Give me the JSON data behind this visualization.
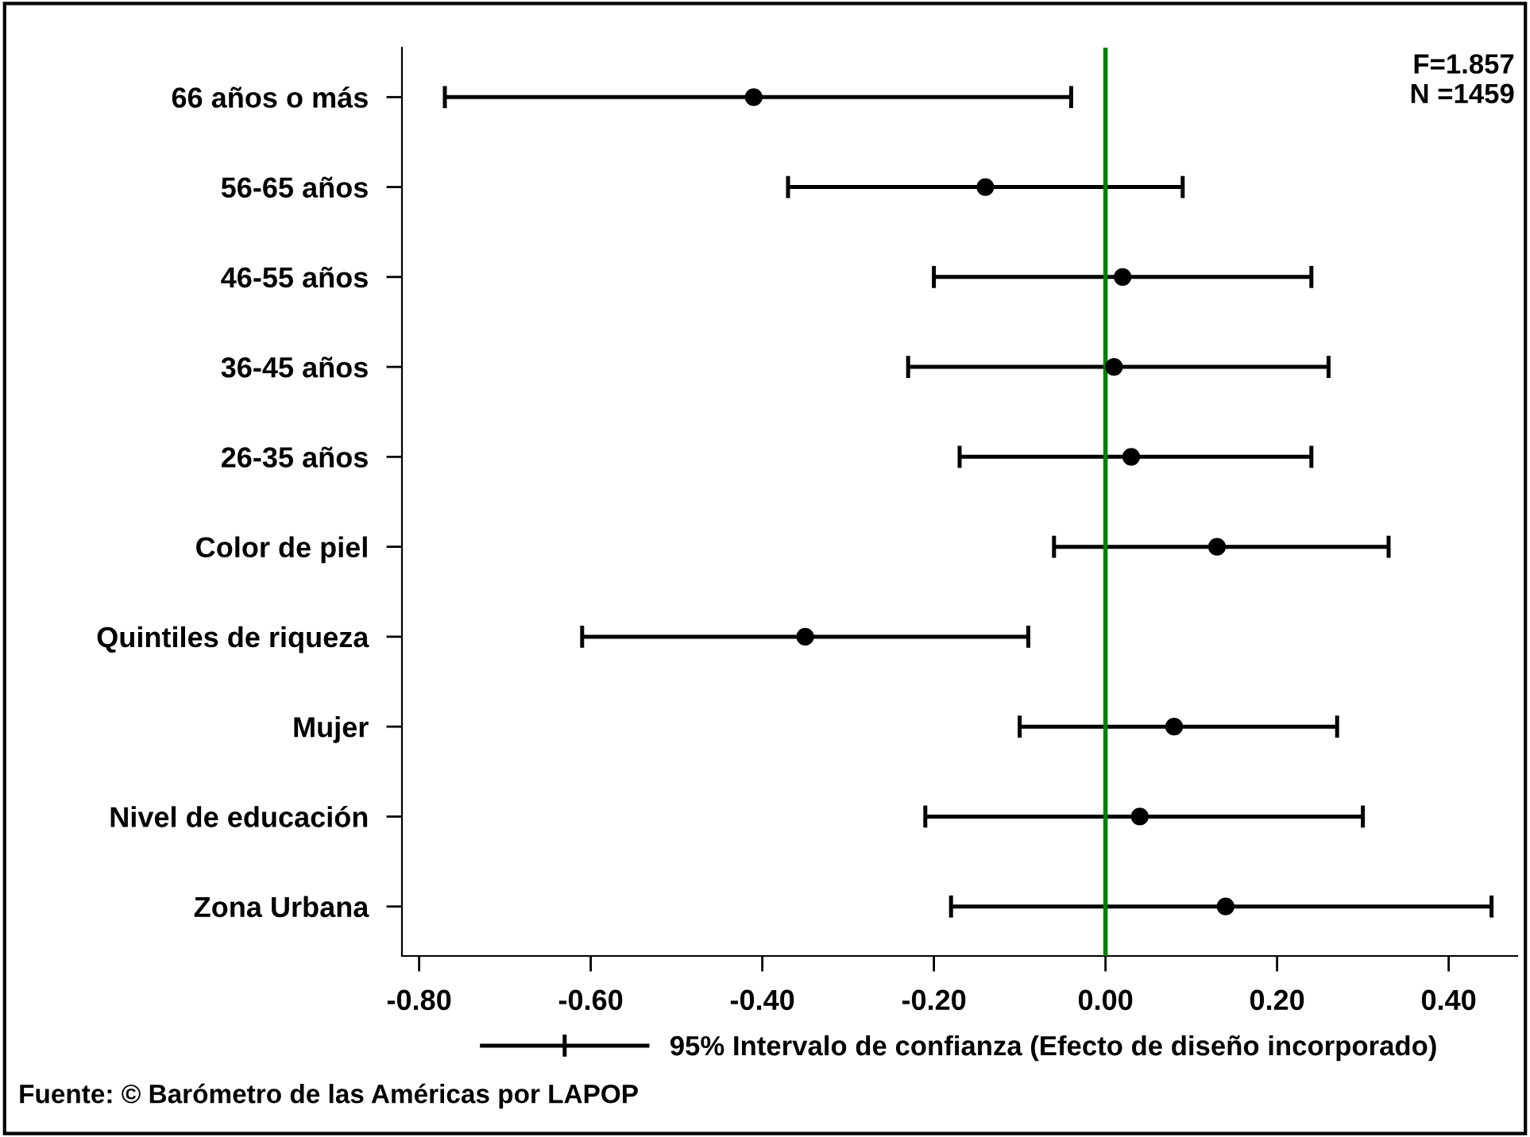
{
  "chart_data": {
    "type": "scatter",
    "orientation": "horizontal",
    "categories": [
      "66 años o más",
      "56-65 años",
      "46-55 años",
      "36-45 años",
      "26-35 años",
      "Color de piel",
      "Quintiles de riqueza",
      "Mujer",
      "Nivel de educación",
      "Zona Urbana"
    ],
    "series": [
      {
        "name": "95% Intervalo de confianza (Efecto de diseño incorporado)",
        "color": "#000000",
        "values": [
          -0.41,
          -0.14,
          0.02,
          0.01,
          0.03,
          0.13,
          -0.35,
          0.08,
          0.04,
          0.14
        ],
        "errors": [
          [
            -0.77,
            -0.04
          ],
          [
            -0.37,
            0.09
          ],
          [
            -0.2,
            0.24
          ],
          [
            -0.23,
            0.26
          ],
          [
            -0.17,
            0.24
          ],
          [
            -0.06,
            0.33
          ],
          [
            -0.61,
            -0.09
          ],
          [
            -0.1,
            0.27
          ],
          [
            -0.21,
            0.3
          ],
          [
            -0.18,
            0.45
          ]
        ]
      }
    ],
    "xlim": [
      -0.82,
      0.48
    ],
    "xticks": [
      {
        "value": -0.8,
        "label": "-0.80"
      },
      {
        "value": -0.6,
        "label": "-0.60"
      },
      {
        "value": -0.4,
        "label": "-0.40"
      },
      {
        "value": -0.2,
        "label": "-0.20"
      },
      {
        "value": 0,
        "label": "0.00"
      },
      {
        "value": 0.2,
        "label": "0.20"
      },
      {
        "value": 0.4,
        "label": "0.40"
      }
    ],
    "ref_lines": [
      {
        "axis": "x",
        "value": 0,
        "color": "#008000"
      }
    ],
    "annotations": [
      "F=1.857\nN =1459",
      "Fuente: © Barómetro de las Américas por LAPOP"
    ],
    "marker": "circle",
    "grid": false,
    "legend": "bottom"
  }
}
